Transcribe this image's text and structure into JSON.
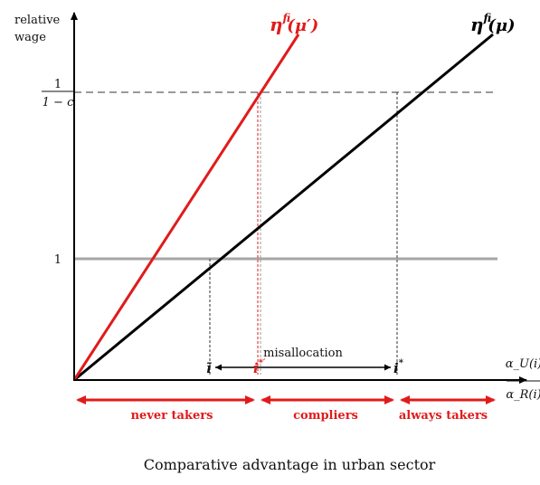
{
  "y_axis_label": [
    "relative",
    "wage"
  ],
  "y_tick_one": "1",
  "y_tick_top": {
    "numerator": "1",
    "denominator": "1 − c"
  },
  "x_axis_label": {
    "numerator": "α_U(i)",
    "denominator": "α_R(i)"
  },
  "curves": {
    "black": {
      "label_main": "η",
      "label_sup": "f",
      "label_sub": "i",
      "label_arg": "(μ)",
      "color": "#000000"
    },
    "red": {
      "label_main": "η",
      "label_sup": "f",
      "label_sub": "i",
      "label_arg": "(μ′)",
      "color": "#e01b1b"
    }
  },
  "points": {
    "i_bar": "ī",
    "i_star_prime": {
      "base": "i",
      "sup": "*′"
    },
    "i_star": {
      "base": "i",
      "sup": "*"
    }
  },
  "misallocation_label": "misallocation",
  "segments": {
    "never_takers": "never takers",
    "compliers": "compliers",
    "always_takers": "always takers"
  },
  "caption": "Comparative advantage in urban sector",
  "colors": {
    "accent_red": "#e01b1b",
    "grey_line": "#a6a6a6",
    "dashed_grey": "#9a9a9a"
  }
}
